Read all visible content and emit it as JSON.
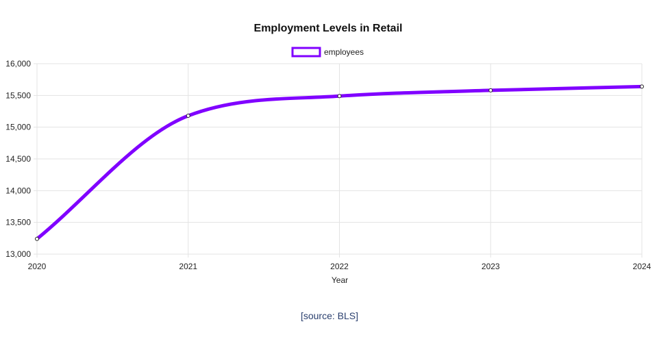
{
  "chart_data": {
    "type": "line",
    "title": "Employment Levels in Retail",
    "xlabel": "Year",
    "ylabel": "",
    "categories": [
      "2020",
      "2021",
      "2022",
      "2023",
      "2024"
    ],
    "series": [
      {
        "name": "employees",
        "values": [
          13240,
          15180,
          15490,
          15580,
          15640
        ]
      }
    ],
    "ylim": [
      13000,
      16000
    ],
    "yticks": [
      "13,000",
      "13,500",
      "14,000",
      "14,500",
      "15,000",
      "15,500",
      "16,000"
    ],
    "ytick_values": [
      13000,
      13500,
      14000,
      14500,
      15000,
      15500,
      16000
    ],
    "grid": true,
    "legend_position": "top-center",
    "line_color": "#8000ff"
  },
  "source": "[source: BLS]"
}
